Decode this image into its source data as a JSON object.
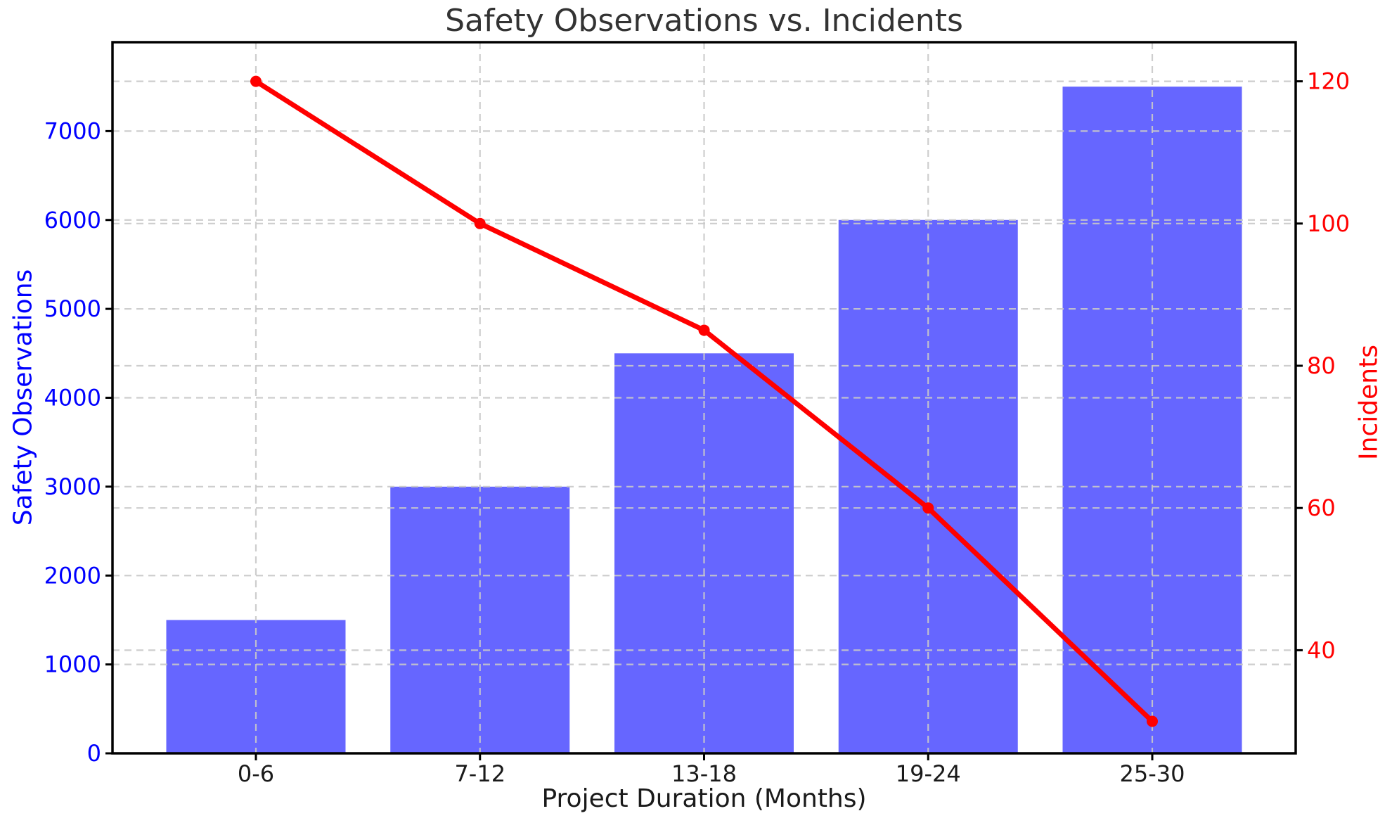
{
  "chart": {
    "figure_kind": "static-chart-screenshot"
  },
  "chart_data": {
    "type": "bar",
    "title": "Safety Observations vs. Incidents",
    "xlabel": "Project Duration (Months)",
    "ylabel_left": "Safety Observations",
    "ylabel_right": "Incidents",
    "categories": [
      "0-6",
      "7-12",
      "13-18",
      "19-24",
      "25-30"
    ],
    "series": [
      {
        "name": "Safety Observations",
        "type": "bar",
        "axis": "left",
        "values": [
          1500,
          3000,
          4500,
          6000,
          7500
        ],
        "color": "#6666ff"
      },
      {
        "name": "Incidents",
        "type": "line",
        "axis": "right",
        "values": [
          120,
          100,
          85,
          60,
          30
        ],
        "color": "#ff0000",
        "marker": "circle"
      }
    ],
    "ylim_left": [
      0,
      8000
    ],
    "ylim_right": [
      25.5,
      125.5
    ],
    "yticks_left": [
      0,
      1000,
      2000,
      3000,
      4000,
      5000,
      6000,
      7000
    ],
    "yticks_right": [
      40,
      60,
      80,
      100,
      120
    ],
    "bar_width_fraction": 0.8,
    "grid": true,
    "grid_style": "dashed",
    "legend": false,
    "style": {
      "bar_fill": "#6666ff",
      "line_color": "#ff0000",
      "left_axis_text_color": "#0000ff",
      "right_axis_text_color": "#ff0000",
      "x_axis_text_color": "#1a1a1a",
      "title_color": "#333333",
      "grid_color": "#c9c9c9",
      "spine_color": "#000000",
      "background": "#ffffff"
    }
  }
}
